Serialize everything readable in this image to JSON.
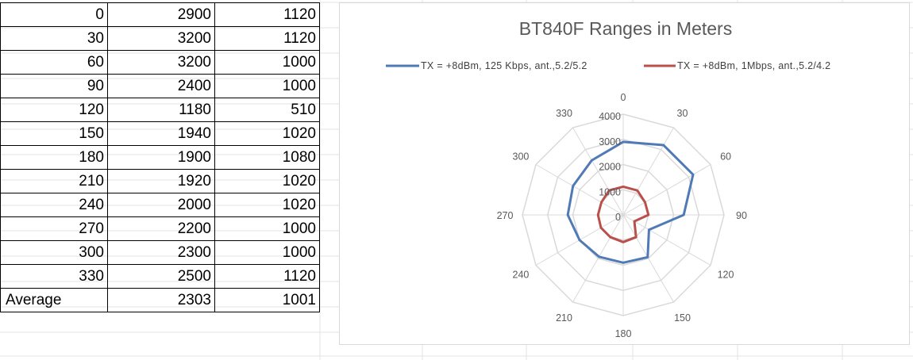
{
  "table": {
    "rows": [
      {
        "angle": "0",
        "a": "2900",
        "b": "1120"
      },
      {
        "angle": "30",
        "a": "3200",
        "b": "1120"
      },
      {
        "angle": "60",
        "a": "3200",
        "b": "1000"
      },
      {
        "angle": "90",
        "a": "2400",
        "b": "1000"
      },
      {
        "angle": "120",
        "a": "1180",
        "b": "510"
      },
      {
        "angle": "150",
        "a": "1940",
        "b": "1020"
      },
      {
        "angle": "180",
        "a": "1900",
        "b": "1080"
      },
      {
        "angle": "210",
        "a": "1920",
        "b": "1020"
      },
      {
        "angle": "240",
        "a": "2000",
        "b": "1020"
      },
      {
        "angle": "270",
        "a": "2200",
        "b": "1000"
      },
      {
        "angle": "300",
        "a": "2300",
        "b": "1000"
      },
      {
        "angle": "330",
        "a": "2500",
        "b": "1120"
      }
    ],
    "average": {
      "label": "Average",
      "a": "2303",
      "b": "1001"
    }
  },
  "chart_data": {
    "type": "radar",
    "title": "BT840F Ranges in Meters",
    "categories": [
      "0",
      "30",
      "60",
      "90",
      "120",
      "150",
      "180",
      "210",
      "240",
      "270",
      "300",
      "330"
    ],
    "series": [
      {
        "name": "TX = +8dBm, 125 Kbps, ant.,5.2/5.2",
        "color": "#4f7ab6",
        "values": [
          2900,
          3200,
          3200,
          2400,
          1180,
          1940,
          1900,
          1920,
          2000,
          2200,
          2300,
          2500
        ]
      },
      {
        "name": "TX = +8dBm, 1Mbps, ant.,5.2/4.2",
        "color": "#b9504b",
        "values": [
          1120,
          1120,
          1000,
          1000,
          510,
          1020,
          1080,
          1020,
          1020,
          1000,
          1000,
          1120
        ]
      }
    ],
    "radial_ticks": [
      "0",
      "1000",
      "2000",
      "3000",
      "4000"
    ],
    "rlim": [
      0,
      4000
    ],
    "legend_position": "top",
    "grid": true
  }
}
